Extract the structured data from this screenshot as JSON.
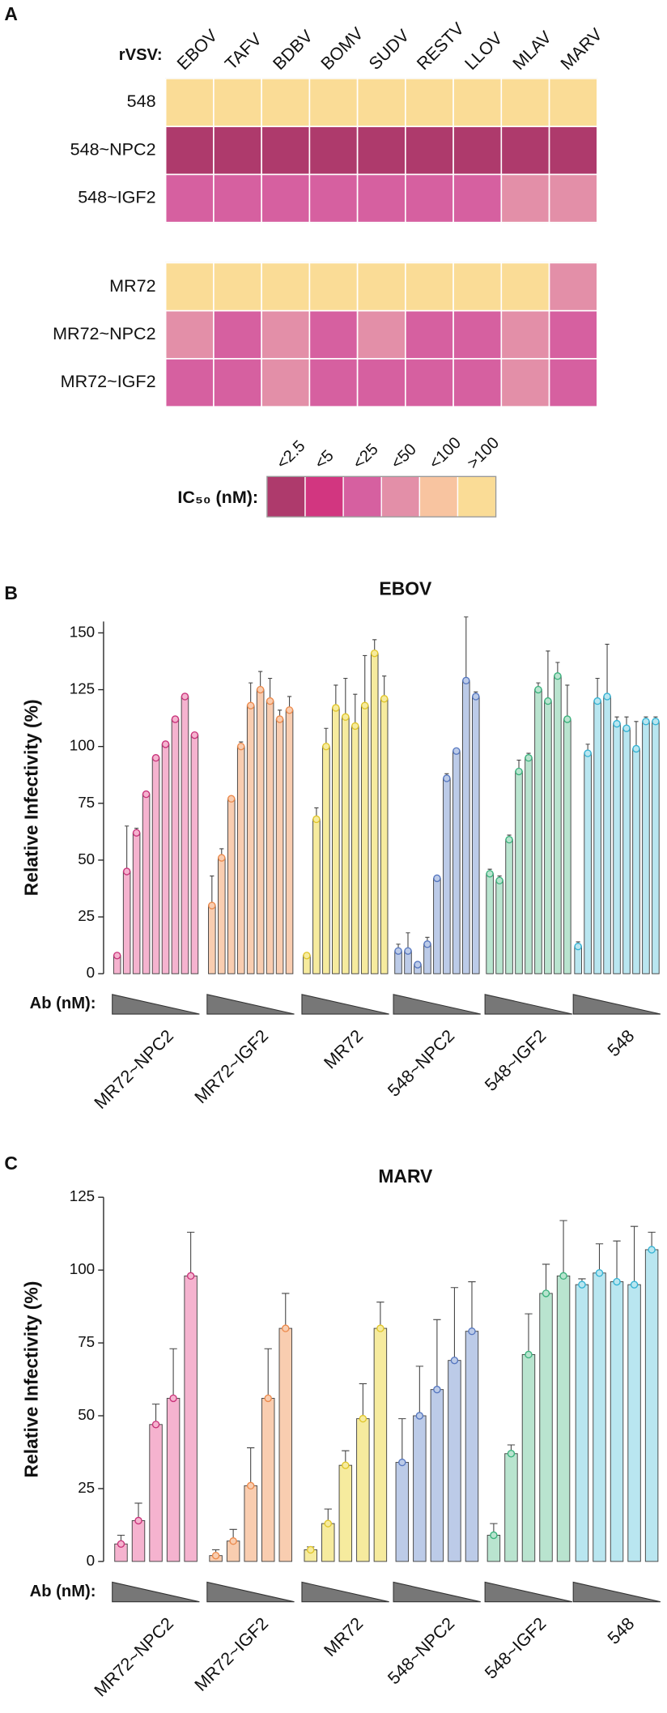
{
  "chart_data": [
    {
      "type": "heatmap",
      "panel": "A",
      "columns_label": "rVSV:",
      "columns": [
        "EBOV",
        "TAFV",
        "BDBV",
        "BOMV",
        "SUDV",
        "RESTV",
        "LLOV",
        "MLAV",
        "MARV"
      ],
      "row_groups": [
        {
          "rows": [
            "548",
            "548~NPC2",
            "548~IGF2"
          ],
          "cells": [
            [
              ">100",
              ">100",
              ">100",
              ">100",
              ">100",
              ">100",
              ">100",
              ">100",
              ">100"
            ],
            [
              "<2.5",
              "<2.5",
              "<2.5",
              "<2.5",
              "<2.5",
              "<2.5",
              "<2.5",
              "<2.5",
              "<2.5"
            ],
            [
              "<25",
              "<25",
              "<25",
              "<25",
              "<25",
              "<25",
              "<25",
              "<50",
              "<50"
            ]
          ]
        },
        {
          "rows": [
            "MR72",
            "MR72~NPC2",
            "MR72~IGF2"
          ],
          "cells": [
            [
              ">100",
              ">100",
              ">100",
              ">100",
              ">100",
              ">100",
              ">100",
              ">100",
              "<50"
            ],
            [
              "<50",
              "<25",
              "<50",
              "<25",
              "<50",
              "<25",
              "<25",
              "<50",
              "<25"
            ],
            [
              "<25",
              "<25",
              "<50",
              "<25",
              "<25",
              "<25",
              "<25",
              "<50",
              "<25"
            ]
          ]
        }
      ],
      "legend": {
        "title": "IC₅₀ (nM):",
        "labels": [
          "<2.5",
          "<5",
          "<25",
          "<50",
          "<100",
          ">100"
        ],
        "colors": [
          "#ae3a6c",
          "#d23680",
          "#d660a0",
          "#e38fa8",
          "#f8c4a0",
          "#fadc96"
        ]
      }
    },
    {
      "type": "bar",
      "panel": "B",
      "title": "EBOV",
      "ylabel": "Relative Infectivity (%)",
      "xlabel": "Ab (nM):",
      "ylim": [
        0,
        155
      ],
      "yticks": [
        0,
        25,
        50,
        75,
        100,
        125,
        150
      ],
      "series": [
        {
          "name": "MR72~NPC2",
          "color": "#f5b3cf",
          "edge": "#c9337a",
          "values": [
            8,
            45,
            62,
            79,
            95,
            101,
            112,
            122,
            105
          ],
          "errors": [
            1,
            20,
            2,
            1,
            1,
            1,
            1,
            1,
            1
          ]
        },
        {
          "name": "MR72~IGF2",
          "color": "#f9cdb0",
          "edge": "#ec8a4c",
          "values": [
            30,
            51,
            77,
            100,
            118,
            125,
            120,
            112,
            116
          ],
          "errors": [
            13,
            4,
            1,
            2,
            10,
            8,
            10,
            4,
            6
          ]
        },
        {
          "name": "MR72",
          "color": "#f6eb9e",
          "edge": "#e0c52a",
          "values": [
            8,
            68,
            100,
            117,
            113,
            109,
            118,
            141,
            121
          ],
          "errors": [
            1,
            5,
            8,
            10,
            17,
            14,
            22,
            6,
            10
          ]
        },
        {
          "name": "548~NPC2",
          "color": "#bccbe8",
          "edge": "#5677c0",
          "values": [
            10,
            10,
            4,
            13,
            42,
            86,
            98,
            129,
            122
          ],
          "errors": [
            3,
            8,
            1,
            3,
            1,
            2,
            1,
            28,
            2
          ]
        },
        {
          "name": "548~IGF2",
          "color": "#b9e4cf",
          "edge": "#3bb27d",
          "values": [
            44,
            41,
            59,
            89,
            95,
            125,
            120,
            131,
            112
          ],
          "errors": [
            2,
            2,
            2,
            5,
            2,
            3,
            22,
            6,
            15
          ]
        },
        {
          "name": "548",
          "color": "#b9e6f0",
          "edge": "#34b3d4",
          "values": [
            12,
            97,
            120,
            122,
            110,
            108,
            99,
            111,
            111
          ],
          "errors": [
            2,
            4,
            10,
            23,
            3,
            5,
            12,
            2,
            2
          ]
        }
      ]
    },
    {
      "type": "bar",
      "panel": "C",
      "title": "MARV",
      "ylabel": "Relative Infectivity (%)",
      "xlabel": "Ab (nM):",
      "ylim": [
        0,
        125
      ],
      "yticks": [
        0,
        25,
        50,
        75,
        100,
        125
      ],
      "series": [
        {
          "name": "MR72~NPC2",
          "color": "#f5b3cf",
          "edge": "#c9337a",
          "values": [
            6,
            14,
            47,
            56,
            98
          ],
          "errors": [
            3,
            6,
            7,
            17,
            15
          ]
        },
        {
          "name": "MR72~IGF2",
          "color": "#f9cdb0",
          "edge": "#ec8a4c",
          "values": [
            2,
            7,
            26,
            56,
            80
          ],
          "errors": [
            2,
            4,
            13,
            17,
            12
          ]
        },
        {
          "name": "MR72",
          "color": "#f6eb9e",
          "edge": "#e0c52a",
          "values": [
            4,
            13,
            33,
            49,
            80
          ],
          "errors": [
            1,
            5,
            5,
            12,
            9
          ]
        },
        {
          "name": "548~NPC2",
          "color": "#bccbe8",
          "edge": "#5677c0",
          "values": [
            34,
            50,
            59,
            69,
            79
          ],
          "errors": [
            15,
            17,
            24,
            25,
            17
          ]
        },
        {
          "name": "548~IGF2",
          "color": "#b9e4cf",
          "edge": "#3bb27d",
          "values": [
            9,
            37,
            71,
            92,
            98
          ],
          "errors": [
            4,
            3,
            14,
            10,
            19
          ]
        },
        {
          "name": "548",
          "color": "#b9e6f0",
          "edge": "#34b3d4",
          "values": [
            95,
            99,
            96,
            95,
            107
          ],
          "errors": [
            2,
            10,
            14,
            20,
            6
          ]
        }
      ]
    }
  ]
}
